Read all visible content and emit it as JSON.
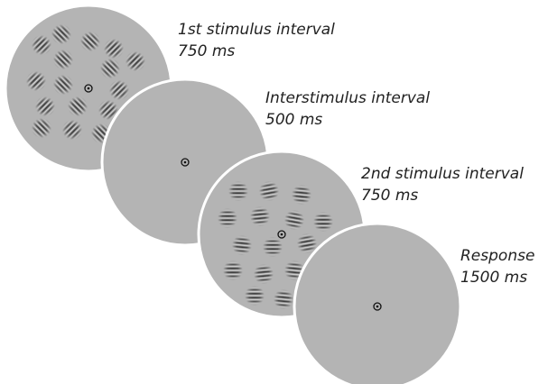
{
  "stages": [
    {
      "label": "1st stimulus interval",
      "duration": "750 ms"
    },
    {
      "label": "Interstimulus interval",
      "duration": "500 ms"
    },
    {
      "label": "2nd stimulus interval",
      "duration": "750 ms"
    },
    {
      "label": "Response",
      "duration": "1500 ms"
    }
  ]
}
